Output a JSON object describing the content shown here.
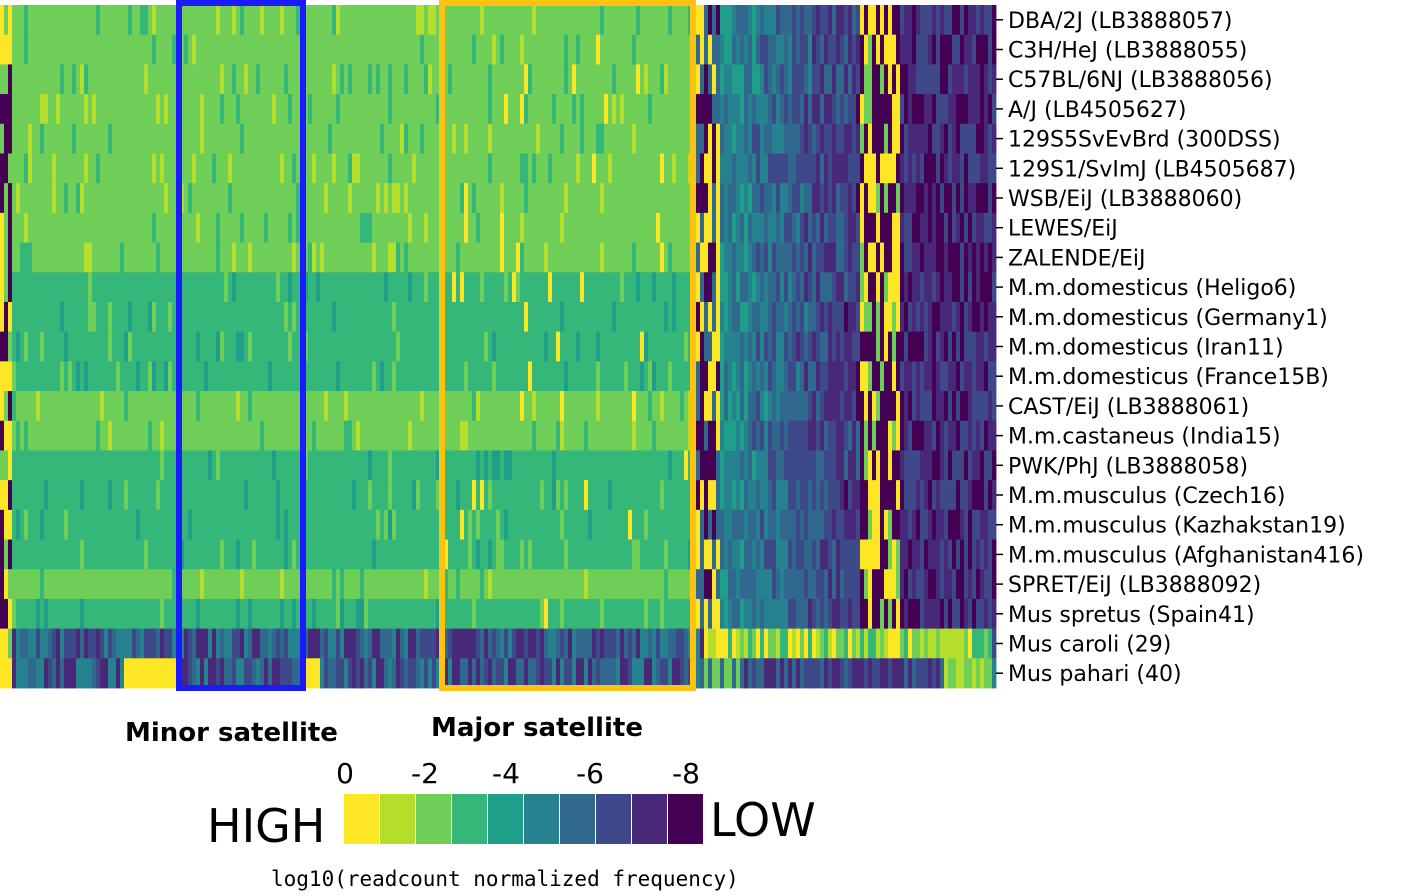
{
  "chart_data": {
    "type": "heatmap",
    "title": "",
    "value_label": "log10(readcount normalized frequency)",
    "value_range": [
      0,
      -8
    ],
    "rows": [
      "DBA/2J (LB3888057)",
      "C3H/HeJ (LB3888055)",
      "C57BL/6NJ (LB3888056)",
      "A/J (LB4505627)",
      "129S5SvEvBrd (300DSS)",
      "129S1/SvImJ (LB4505687)",
      "WSB/EiJ (LB3888060)",
      "LEWES/EiJ",
      "ZALENDE/EiJ",
      "M.m.domesticus (Heligo6)",
      "M.m.domesticus (Germany1)",
      "M.m.domesticus (Iran11)",
      "M.m.domesticus (France15B)",
      "CAST/EiJ (LB3888061)",
      "M.m.castaneus (India15)",
      "PWK/PhJ (LB3888058)",
      "M.m.musculus (Czech16)",
      "M.m.musculus (Kazhakstan19)",
      "M.m.musculus (Afghanistan416)",
      "SPRET/EiJ (LB3888092)",
      "Mus spretus (Spain41)",
      "Mus caroli (29)",
      "Mus pahari (40)"
    ],
    "regions": [
      {
        "name": "Minor satellite",
        "color": "#1a1aff"
      },
      {
        "name": "Major satellite",
        "color": "#ffc20e"
      }
    ],
    "color_scale": {
      "ticks": [
        "0",
        "-2",
        "-4",
        "-6",
        "-8"
      ],
      "low_label": "LOW",
      "high_label": "HIGH",
      "colors": [
        "#fde725",
        "#b5de2b",
        "#6ece58",
        "#35b779",
        "#1f9e89",
        "#26828e",
        "#31688e",
        "#3e4989",
        "#482878",
        "#440154"
      ]
    }
  }
}
